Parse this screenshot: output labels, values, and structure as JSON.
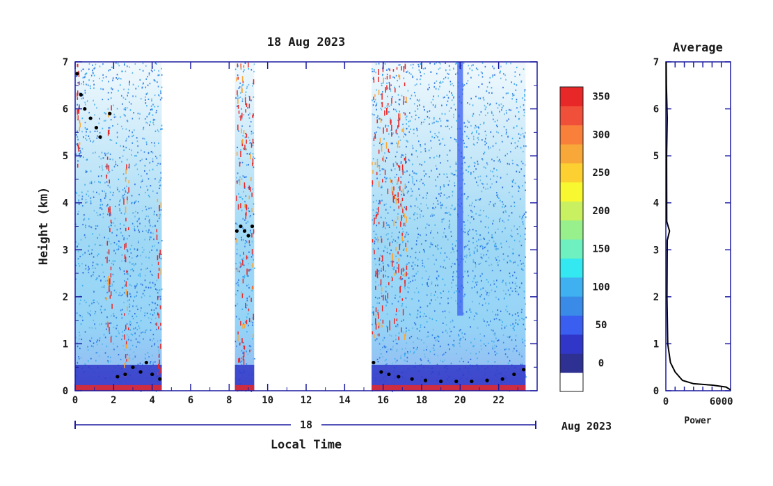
{
  "chart_data": {
    "type": "heatmap",
    "title": "18 Aug 2023",
    "xlabel": "Local Time",
    "ylabel": "Height (km)",
    "date_day": "18",
    "date_month_year": "Aug 2023",
    "xlim": [
      0,
      24
    ],
    "ylim": [
      0,
      7
    ],
    "x_ticks": [
      0,
      2,
      4,
      6,
      8,
      10,
      12,
      14,
      16,
      18,
      20,
      22
    ],
    "y_ticks": [
      0,
      1,
      2,
      3,
      4,
      5,
      6,
      7
    ],
    "data_intervals_hours": [
      [
        0.0,
        4.5
      ],
      [
        8.3,
        9.3
      ],
      [
        15.4,
        23.4
      ]
    ],
    "colorbar": {
      "tick_values": [
        0,
        50,
        100,
        150,
        200,
        250,
        300,
        350
      ],
      "colors": [
        "#ffffff",
        "#2e3192",
        "#3037c8",
        "#3a5ef0",
        "#3a8ae8",
        "#3fb0f0",
        "#33e8f0",
        "#6ef0c0",
        "#98f08c",
        "#c8f060",
        "#f8f830",
        "#fcd030",
        "#f8a838",
        "#f8803a",
        "#f0503a",
        "#e82828"
      ]
    },
    "boundary_height_km": [
      {
        "x": 0.1,
        "y": 6.75
      },
      {
        "x": 0.3,
        "y": 6.3
      },
      {
        "x": 0.5,
        "y": 6.0
      },
      {
        "x": 0.8,
        "y": 5.8
      },
      {
        "x": 1.1,
        "y": 5.6
      },
      {
        "x": 1.3,
        "y": 5.4
      },
      {
        "x": 1.8,
        "y": 5.9
      },
      {
        "x": 2.2,
        "y": 0.3
      },
      {
        "x": 2.6,
        "y": 0.35
      },
      {
        "x": 3.0,
        "y": 0.5
      },
      {
        "x": 3.4,
        "y": 0.4
      },
      {
        "x": 3.7,
        "y": 0.6
      },
      {
        "x": 4.0,
        "y": 0.35
      },
      {
        "x": 4.4,
        "y": 0.25
      },
      {
        "x": 8.4,
        "y": 3.4
      },
      {
        "x": 8.6,
        "y": 3.5
      },
      {
        "x": 8.8,
        "y": 3.4
      },
      {
        "x": 9.0,
        "y": 3.3
      },
      {
        "x": 9.2,
        "y": 3.5
      },
      {
        "x": 15.5,
        "y": 0.6
      },
      {
        "x": 15.9,
        "y": 0.4
      },
      {
        "x": 16.3,
        "y": 0.35
      },
      {
        "x": 16.8,
        "y": 0.3
      },
      {
        "x": 17.5,
        "y": 0.25
      },
      {
        "x": 18.2,
        "y": 0.22
      },
      {
        "x": 19.0,
        "y": 0.2
      },
      {
        "x": 19.8,
        "y": 0.2
      },
      {
        "x": 20.6,
        "y": 0.2
      },
      {
        "x": 21.4,
        "y": 0.22
      },
      {
        "x": 22.2,
        "y": 0.25
      },
      {
        "x": 22.8,
        "y": 0.35
      },
      {
        "x": 23.3,
        "y": 0.45
      }
    ],
    "side_panel": {
      "title": "Average",
      "xlabel": "Power",
      "x_ticks": [
        0,
        6000
      ],
      "xlim": [
        0,
        7000
      ],
      "y_ticks": [
        0,
        1,
        2,
        3,
        4,
        5,
        6,
        7
      ],
      "profile": [
        {
          "x": 7000,
          "y": 0.02
        },
        {
          "x": 6500,
          "y": 0.08
        },
        {
          "x": 5000,
          "y": 0.12
        },
        {
          "x": 3000,
          "y": 0.15
        },
        {
          "x": 1800,
          "y": 0.22
        },
        {
          "x": 1000,
          "y": 0.4
        },
        {
          "x": 500,
          "y": 0.6
        },
        {
          "x": 200,
          "y": 1.0
        },
        {
          "x": 120,
          "y": 2.0
        },
        {
          "x": 150,
          "y": 3.2
        },
        {
          "x": 400,
          "y": 3.4
        },
        {
          "x": 100,
          "y": 3.6
        },
        {
          "x": 80,
          "y": 5.0
        },
        {
          "x": 150,
          "y": 5.8
        },
        {
          "x": 60,
          "y": 6.5
        },
        {
          "x": 40,
          "y": 7.0
        }
      ]
    }
  }
}
